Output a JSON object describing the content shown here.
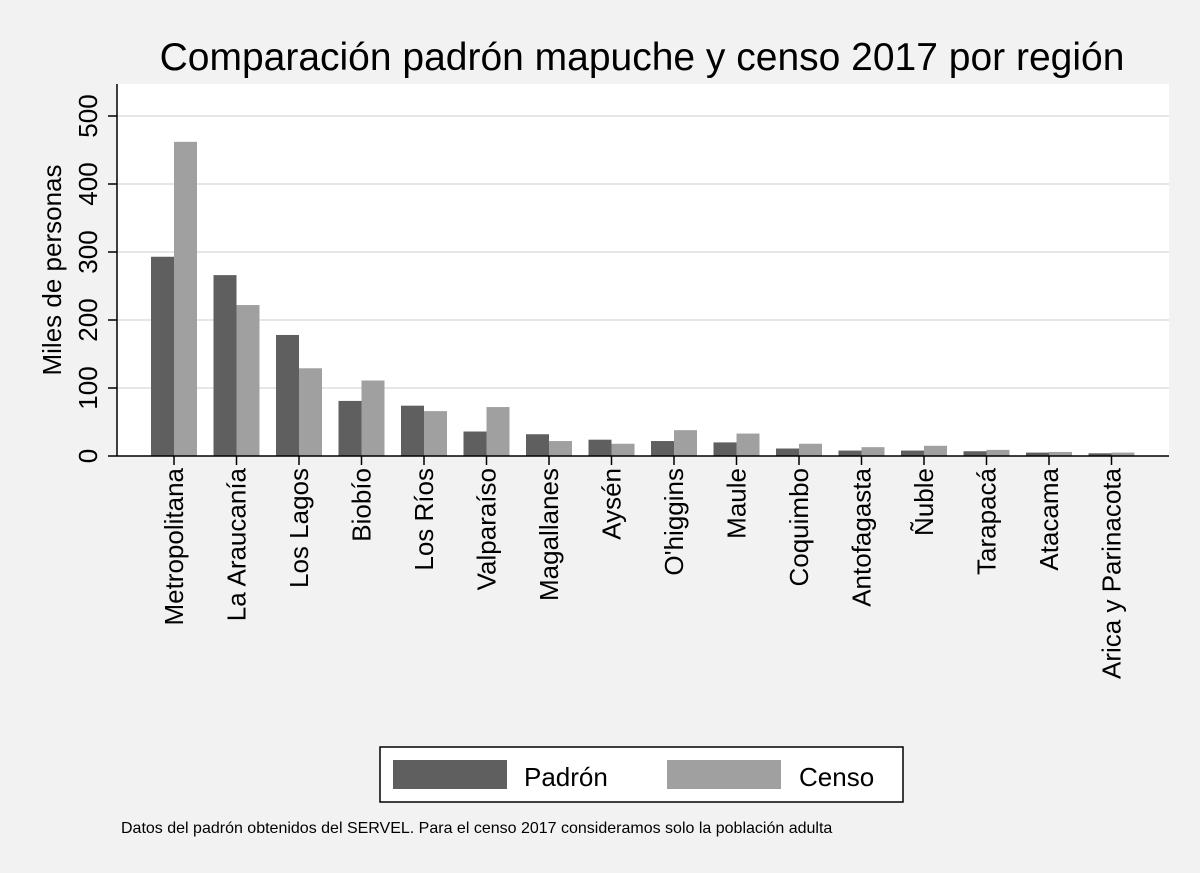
{
  "chart_data": {
    "type": "bar",
    "title": "Comparación padrón mapuche y censo 2017 por región",
    "ylabel": "Miles de personas",
    "xlabel": "",
    "ylim": [
      0,
      550
    ],
    "yticks": [
      0,
      100,
      200,
      300,
      400,
      500
    ],
    "grid": true,
    "legend_position": "bottom",
    "note": "Datos del padrón obtenidos del SERVEL. Para el censo 2017 consideramos solo la población adulta",
    "categories": [
      "Metropolitana",
      "La Araucanía",
      "Los Lagos",
      "Biobío",
      "Los Ríos",
      "Valparaíso",
      "Magallanes",
      "Aysén",
      "O'higgins",
      "Maule",
      "Coquimbo",
      "Antofagasta",
      "Ñuble",
      "Tarapacá",
      "Atacama",
      "Arica y Parinacota"
    ],
    "series": [
      {
        "name": "Padrón",
        "color": "#5f5f5f",
        "values": [
          293,
          266,
          178,
          81,
          74,
          36,
          32,
          24,
          22,
          20,
          11,
          8,
          8,
          7,
          5,
          4
        ]
      },
      {
        "name": "Censo",
        "color": "#a0a0a0",
        "values": [
          462,
          222,
          129,
          111,
          66,
          72,
          22,
          18,
          38,
          33,
          18,
          13,
          15,
          9,
          6,
          5
        ]
      }
    ]
  }
}
